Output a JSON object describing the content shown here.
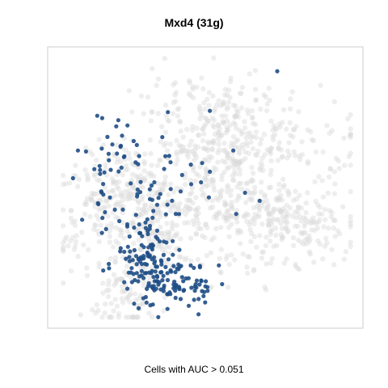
{
  "chart_data": {
    "type": "scatter",
    "title": "Mxd4 (31g)",
    "xlabel": "Cells with AUC > 0.051",
    "ylabel": "",
    "axes_shown": false,
    "grid": false,
    "legend": "none",
    "colors": {
      "background_cells": "#d9d9d9",
      "highlighted_cells": "#1f4e86",
      "panel_border": "#cccccc"
    },
    "series": [
      {
        "role": "all cells",
        "clusters": [
          {
            "cx": 0.24,
            "cy": 0.5,
            "sx": 0.11,
            "sy": 0.09,
            "n": 220
          },
          {
            "cx": 0.48,
            "cy": 0.25,
            "sx": 0.12,
            "sy": 0.1,
            "n": 150
          },
          {
            "cx": 0.75,
            "cy": 0.62,
            "sx": 0.12,
            "sy": 0.09,
            "n": 260
          },
          {
            "cx": 0.73,
            "cy": 0.32,
            "sx": 0.15,
            "sy": 0.08,
            "n": 120
          },
          {
            "cx": 0.55,
            "cy": 0.4,
            "sx": 0.08,
            "sy": 0.12,
            "n": 150
          },
          {
            "cx": 0.3,
            "cy": 0.72,
            "sx": 0.16,
            "sy": 0.09,
            "n": 180
          },
          {
            "cx": 0.22,
            "cy": 0.92,
            "sx": 0.05,
            "sy": 0.07,
            "n": 70
          },
          {
            "cx": 0.42,
            "cy": 0.57,
            "sx": 0.14,
            "sy": 0.05,
            "n": 90
          }
        ]
      },
      {
        "role": "cells with AUC above threshold",
        "clusters": [
          {
            "cx": 0.28,
            "cy": 0.76,
            "sx": 0.045,
            "sy": 0.07,
            "n": 80
          },
          {
            "cx": 0.36,
            "cy": 0.84,
            "sx": 0.05,
            "sy": 0.06,
            "n": 80
          },
          {
            "cx": 0.22,
            "cy": 0.53,
            "sx": 0.08,
            "sy": 0.09,
            "n": 40
          },
          {
            "cx": 0.2,
            "cy": 0.36,
            "sx": 0.07,
            "sy": 0.07,
            "n": 30
          },
          {
            "cx": 0.39,
            "cy": 0.48,
            "sx": 0.05,
            "sy": 0.05,
            "n": 15
          },
          {
            "cx": 0.49,
            "cy": 0.87,
            "sx": 0.04,
            "sy": 0.05,
            "n": 25
          }
        ],
        "points": [
          {
            "x": 0.74,
            "y": 0.06
          },
          {
            "x": 0.51,
            "y": 0.21
          },
          {
            "x": 0.59,
            "y": 0.36
          },
          {
            "x": 0.51,
            "y": 0.44
          },
          {
            "x": 0.48,
            "y": 0.48
          },
          {
            "x": 0.63,
            "y": 0.52
          },
          {
            "x": 0.68,
            "y": 0.55
          },
          {
            "x": 0.6,
            "y": 0.6
          },
          {
            "x": 0.06,
            "y": 0.36
          }
        ]
      }
    ]
  },
  "labels": {
    "title": "Mxd4 (31g)",
    "caption": "Cells with AUC > 0.051"
  }
}
